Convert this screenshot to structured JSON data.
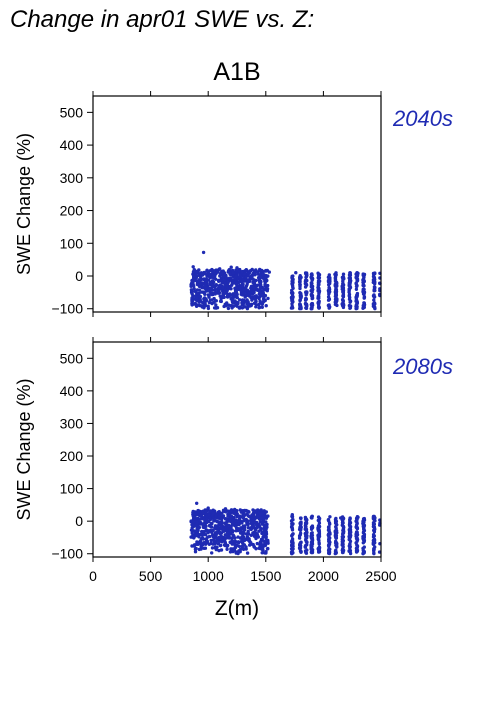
{
  "figure_title": "Change in apr01 SWE vs. Z:",
  "scenario_label": "A1B",
  "point_color": "#1f2bb3",
  "chart_data": [
    {
      "type": "scatter",
      "panel_label": "2040s",
      "xlabel": "Z(m)",
      "ylabel": "SWE Change (%)",
      "xlim": [
        0,
        2500
      ],
      "ylim": [
        -110,
        550
      ],
      "yticks": [
        -100,
        0,
        100,
        200,
        300,
        400,
        500
      ],
      "xticks": [
        0,
        500,
        1000,
        1500,
        2000,
        2500
      ],
      "x_tick_labels_shown": false,
      "grid": false,
      "clusters": [
        {
          "z": [
            850,
            1520
          ],
          "swe": [
            -100,
            20
          ],
          "density": "dense"
        },
        {
          "z": [
            1720,
            2500
          ],
          "swe": [
            -100,
            10
          ],
          "density": "columns"
        }
      ],
      "points": [
        [
          960,
          72
        ],
        [
          1200,
          27
        ],
        [
          1250,
          25
        ],
        [
          870,
          28
        ],
        [
          1100,
          22
        ],
        [
          1450,
          18
        ],
        [
          1530,
          12
        ],
        [
          1760,
          10
        ],
        [
          1900,
          5
        ],
        [
          2100,
          5
        ],
        [
          2300,
          8
        ]
      ]
    },
    {
      "type": "scatter",
      "panel_label": "2080s",
      "xlabel": "Z(m)",
      "ylabel": "SWE Change (%)",
      "xlim": [
        0,
        2500
      ],
      "ylim": [
        -110,
        550
      ],
      "yticks": [
        -100,
        0,
        100,
        200,
        300,
        400,
        500
      ],
      "xticks": [
        0,
        500,
        1000,
        1500,
        2000,
        2500
      ],
      "x_tick_labels_shown": true,
      "grid": false,
      "clusters": [
        {
          "z": [
            850,
            1520
          ],
          "swe": [
            -100,
            35
          ],
          "density": "dense"
        },
        {
          "z": [
            1720,
            2500
          ],
          "swe": [
            -100,
            15
          ],
          "density": "columns"
        }
      ],
      "points": [
        [
          900,
          55
        ],
        [
          1000,
          40
        ],
        [
          1150,
          38
        ],
        [
          1230,
          36
        ],
        [
          870,
          30
        ],
        [
          1400,
          30
        ],
        [
          1730,
          20
        ],
        [
          1900,
          10
        ],
        [
          2150,
          10
        ],
        [
          2300,
          12
        ]
      ]
    }
  ]
}
